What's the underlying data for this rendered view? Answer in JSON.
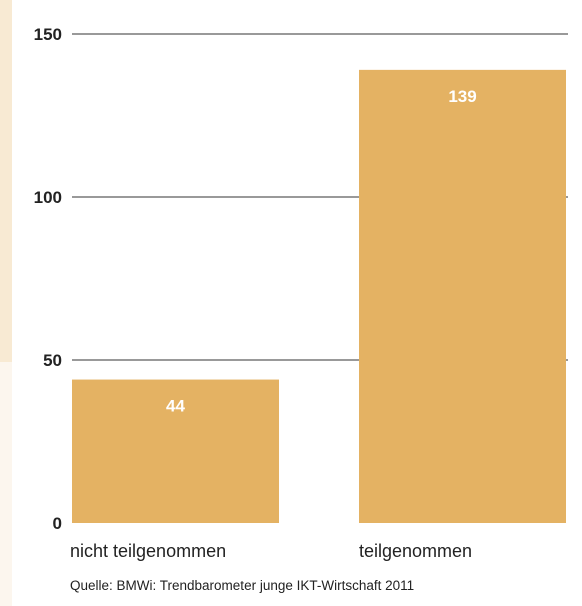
{
  "chart_data": {
    "type": "bar",
    "categories": [
      "nicht teilgenommen",
      "teilgenommen"
    ],
    "values": [
      44,
      139
    ],
    "data_labels": [
      "44",
      "139"
    ],
    "yticks": [
      0,
      50,
      100,
      150
    ],
    "ylim": [
      0,
      150
    ],
    "grid": true,
    "bar_color": "#e4b263",
    "source": "Quelle: BMWi: Trendbarometer junge IKT-Wirtschaft 2011"
  }
}
